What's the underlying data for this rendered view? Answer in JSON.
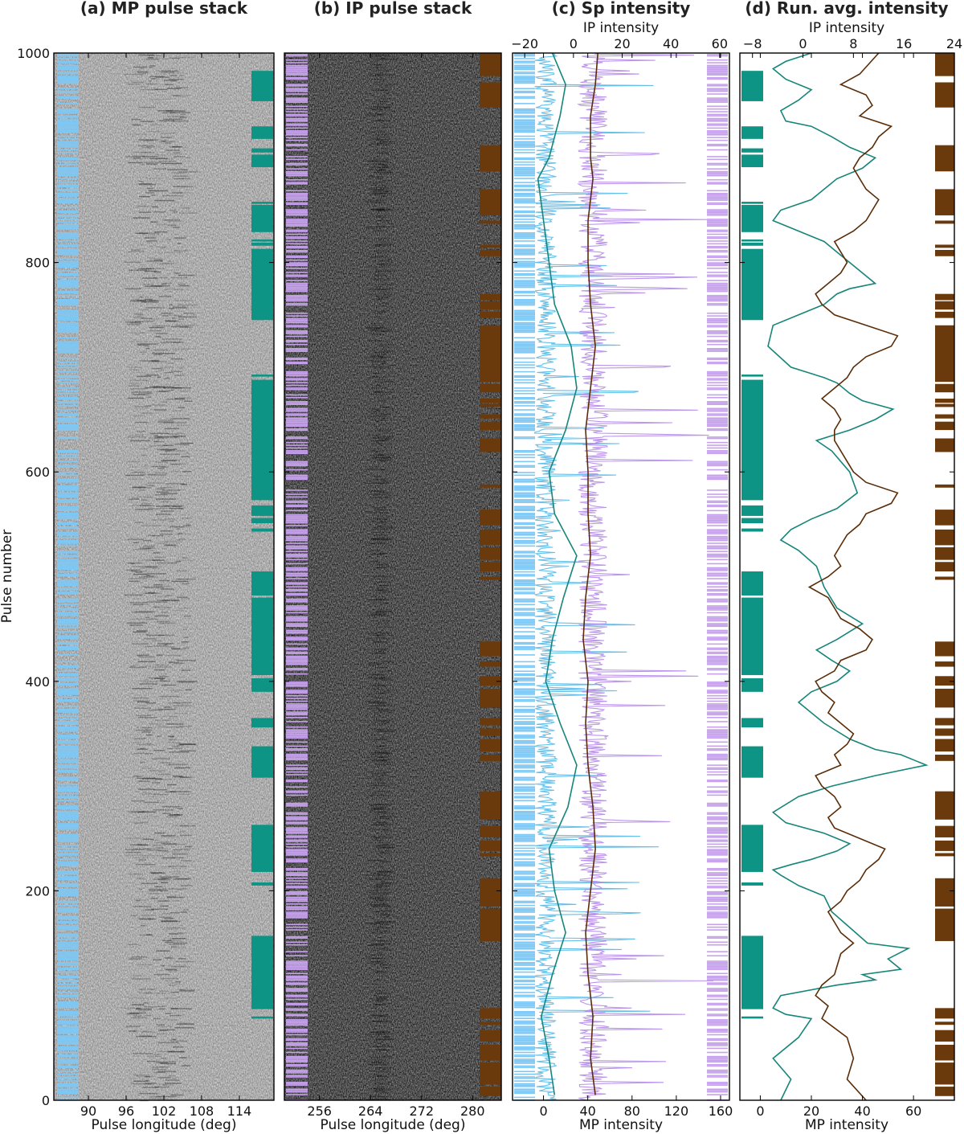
{
  "colors": {
    "mp_marker": "#7ec8f5",
    "ip_marker": "#c7a2ec",
    "mp_mode": "#0e9484",
    "ip_mode": "#6a3a0c",
    "mp_line": "#55b8e6",
    "ip_line": "#b58be8",
    "mp_avg": "#16857a",
    "ip_avg": "#5a2d08"
  },
  "y_axis": {
    "label": "Pulse number",
    "range": [
      0,
      1000
    ],
    "ticks": [
      0,
      200,
      400,
      600,
      800,
      1000
    ]
  },
  "chart_data": [
    {
      "type": "heatmap",
      "title": "(a) MP pulse stack",
      "xlabel": "Pulse longitude (deg)",
      "xlim": [
        84.5,
        119.5
      ],
      "xticks": [
        90,
        96,
        102,
        108,
        114
      ],
      "ylim": [
        0,
        1000
      ],
      "mode_bands": [
        [
          78,
          80
        ],
        [
          87,
          157
        ],
        [
          205,
          208
        ],
        [
          218,
          263
        ],
        [
          308,
          338
        ],
        [
          356,
          365
        ],
        [
          390,
          403
        ],
        [
          406,
          480
        ],
        [
          482,
          505
        ],
        [
          543,
          546
        ],
        [
          551,
          556
        ],
        [
          558,
          568
        ],
        [
          573,
          688
        ],
        [
          691,
          693
        ],
        [
          745,
          813
        ],
        [
          816,
          819
        ],
        [
          820,
          822
        ],
        [
          829,
          855
        ],
        [
          856,
          858
        ],
        [
          891,
          903
        ],
        [
          905,
          909
        ],
        [
          918,
          930
        ],
        [
          954,
          983
        ]
      ]
    },
    {
      "type": "heatmap",
      "title": "(b) IP pulse stack",
      "xlabel": "Pulse longitude (deg)",
      "xlim": [
        250.5,
        284.5
      ],
      "xticks": [
        256,
        264,
        272,
        280
      ],
      "ylim": [
        0,
        1000
      ],
      "mode_bands": [
        [
          4,
          13
        ],
        [
          15,
          36
        ],
        [
          38,
          53
        ],
        [
          56,
          67
        ],
        [
          72,
          75
        ],
        [
          78,
          88
        ],
        [
          152,
          183
        ],
        [
          185,
          212
        ],
        [
          233,
          236
        ],
        [
          238,
          248
        ],
        [
          251,
          262
        ],
        [
          268,
          295
        ],
        [
          324,
          330
        ],
        [
          333,
          345
        ],
        [
          348,
          355
        ],
        [
          358,
          365
        ],
        [
          375,
          393
        ],
        [
          396,
          405
        ],
        [
          414,
          419
        ],
        [
          424,
          438
        ],
        [
          497,
          500
        ],
        [
          505,
          514
        ],
        [
          516,
          528
        ],
        [
          530,
          545
        ],
        [
          549,
          564
        ],
        [
          585,
          588
        ],
        [
          619,
          632
        ],
        [
          640,
          648
        ],
        [
          651,
          655
        ],
        [
          662,
          665
        ],
        [
          666,
          670
        ],
        [
          676,
          684
        ],
        [
          686,
          740
        ],
        [
          747,
          753
        ],
        [
          755,
          763
        ],
        [
          764,
          770
        ],
        [
          806,
          812
        ],
        [
          814,
          817
        ],
        [
          837,
          840
        ],
        [
          845,
          870
        ],
        [
          887,
          912
        ],
        [
          948,
          972
        ],
        [
          978,
          1000
        ]
      ]
    },
    {
      "type": "line",
      "title": "(c) Sp intensity",
      "xlabel": "MP intensity",
      "xlim": [
        -28,
        168
      ],
      "xticks": [
        0,
        40,
        80,
        120,
        160
      ],
      "x2label": "IP intensity",
      "x2lim": [
        -25,
        64
      ],
      "x2ticks": [
        -20,
        0,
        20,
        40,
        60
      ],
      "ylim": [
        0,
        1000
      ],
      "series": [
        {
          "axis": "MP",
          "kind": "single pulse",
          "levels": {
            "baseline": 2,
            "spread": 10,
            "spike_max": 105
          }
        },
        {
          "axis": "IP",
          "kind": "single pulse",
          "levels": {
            "baseline": 8,
            "spread": 6,
            "spike_max": 58
          }
        },
        {
          "axis": "MP",
          "kind": "running average",
          "x": [
            10,
            5,
            -2,
            8,
            20,
            10,
            5,
            22,
            30,
            15,
            2,
            8,
            18,
            30,
            10,
            5,
            20,
            30,
            25,
            10,
            5,
            0,
            -5,
            5,
            15,
            20,
            8
          ],
          "y": [
            5,
            40,
            80,
            120,
            160,
            200,
            240,
            280,
            320,
            360,
            400,
            440,
            480,
            520,
            560,
            600,
            640,
            680,
            720,
            760,
            800,
            840,
            880,
            900,
            940,
            970,
            1000
          ]
        },
        {
          "axis": "IP",
          "kind": "running average",
          "x": [
            9,
            7,
            8,
            6,
            5,
            7,
            9,
            8,
            6,
            5,
            6,
            4,
            5,
            7,
            6,
            6,
            5,
            7,
            9,
            7,
            6,
            6,
            8,
            7,
            7,
            9,
            10
          ],
          "y": [
            5,
            40,
            80,
            120,
            160,
            200,
            240,
            280,
            320,
            360,
            400,
            440,
            480,
            520,
            560,
            600,
            640,
            680,
            720,
            760,
            800,
            840,
            880,
            900,
            940,
            970,
            1000
          ]
        }
      ]
    },
    {
      "type": "line",
      "title": "(d) Run. avg. intensity",
      "xlabel": "MP intensity",
      "xlim": [
        -8,
        76
      ],
      "xticks": [
        0,
        20,
        40,
        60
      ],
      "x2label": "IP intensity",
      "x2lim": [
        -10,
        24
      ],
      "x2ticks": [
        -8,
        0,
        8,
        16,
        24
      ],
      "ylim": [
        0,
        1000
      ],
      "series": [
        {
          "axis": "MP",
          "kind": "running average",
          "x": [
            8,
            12,
            5,
            15,
            20,
            10,
            5,
            8,
            30,
            45,
            40,
            55,
            50,
            58,
            42,
            35,
            28,
            25,
            15,
            8,
            5,
            12,
            20,
            30,
            35,
            25,
            10,
            5,
            15,
            28,
            45,
            65,
            55,
            45,
            35,
            25,
            15,
            20,
            30,
            35,
            28,
            22,
            30,
            40,
            30,
            25,
            22,
            15,
            8,
            12,
            20,
            30,
            38,
            35,
            28,
            22,
            35,
            45,
            52,
            40,
            35,
            30,
            25,
            12,
            3,
            5,
            15,
            25,
            30,
            35,
            45,
            40,
            35,
            30,
            25,
            15,
            5,
            8,
            20,
            25,
            30,
            40,
            45,
            35,
            28,
            20,
            10,
            8,
            15,
            20,
            10,
            5,
            10,
            20
          ],
          "y": [
            0,
            20,
            40,
            60,
            78,
            82,
            88,
            100,
            110,
            115,
            120,
            125,
            135,
            145,
            150,
            165,
            180,
            195,
            205,
            215,
            220,
            225,
            230,
            238,
            245,
            255,
            265,
            275,
            290,
            300,
            310,
            320,
            330,
            335,
            345,
            360,
            380,
            390,
            400,
            410,
            420,
            430,
            440,
            455,
            470,
            490,
            510,
            525,
            535,
            545,
            555,
            565,
            580,
            600,
            620,
            630,
            640,
            650,
            660,
            668,
            675,
            685,
            690,
            700,
            720,
            740,
            750,
            760,
            770,
            775,
            780,
            790,
            800,
            810,
            820,
            830,
            840,
            850,
            860,
            870,
            880,
            890,
            900,
            910,
            920,
            930,
            935,
            945,
            955,
            965,
            975,
            985,
            992,
            1000
          ]
        },
        {
          "axis": "IP",
          "kind": "running average",
          "x": [
            10,
            7,
            8,
            7,
            3,
            4,
            2,
            3,
            5,
            6,
            8,
            6,
            5,
            4,
            6,
            7,
            9,
            10,
            12,
            13,
            9,
            5,
            4,
            6,
            5,
            3,
            2,
            6,
            5,
            7,
            8,
            6,
            4,
            5,
            3,
            2,
            5,
            6,
            10,
            11,
            9,
            6,
            5,
            4,
            1,
            4,
            6,
            5,
            6,
            7,
            9,
            10,
            14,
            15,
            10,
            8,
            7,
            6,
            5,
            5,
            6,
            5,
            3,
            5,
            7,
            8,
            10,
            14,
            15,
            10,
            5,
            3,
            2,
            4,
            6,
            7,
            6,
            5,
            8,
            10,
            11,
            12,
            10,
            9,
            8,
            9,
            11,
            12,
            14,
            9,
            11,
            10,
            6,
            9,
            12
          ],
          "y": [
            0,
            20,
            40,
            60,
            78,
            90,
            100,
            110,
            120,
            140,
            150,
            160,
            170,
            180,
            190,
            200,
            210,
            220,
            230,
            240,
            250,
            260,
            270,
            280,
            290,
            300,
            310,
            320,
            330,
            340,
            350,
            360,
            370,
            380,
            390,
            400,
            410,
            420,
            430,
            440,
            450,
            460,
            470,
            480,
            490,
            500,
            510,
            520,
            530,
            540,
            550,
            560,
            570,
            580,
            590,
            600,
            610,
            620,
            630,
            640,
            650,
            660,
            670,
            680,
            690,
            700,
            710,
            720,
            730,
            740,
            750,
            760,
            770,
            780,
            790,
            800,
            810,
            820,
            830,
            840,
            850,
            860,
            870,
            880,
            890,
            900,
            910,
            920,
            930,
            940,
            950,
            960,
            970,
            980,
            1000
          ]
        }
      ]
    }
  ]
}
